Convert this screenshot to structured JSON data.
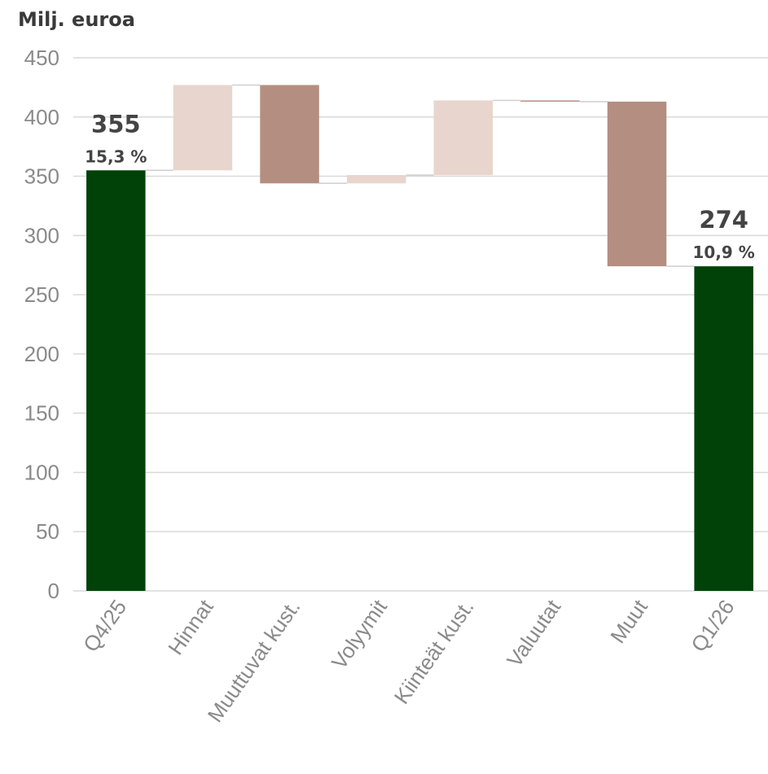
{
  "chart_data": {
    "type": "bar",
    "subtype": "waterfall",
    "unit_label": "Milj. euroa",
    "ylim": [
      0,
      450
    ],
    "yticks": [
      "0",
      "50",
      "100",
      "150",
      "200",
      "250",
      "300",
      "350",
      "400",
      "450"
    ],
    "grid": true,
    "categories": [
      "Q4/25",
      "Hinnat",
      "Muuttuvat kust.",
      "Volyymit",
      "Kiinteät kust.",
      "Valuutat",
      "Muut",
      "Q1/26"
    ],
    "bars": [
      {
        "category": "Q4/25",
        "kind": "total",
        "start": 0,
        "end": 355,
        "value_label": "355",
        "pct_label": "15,3 %"
      },
      {
        "category": "Hinnat",
        "kind": "increase",
        "start": 355,
        "end": 427
      },
      {
        "category": "Muuttuvat kust.",
        "kind": "decrease",
        "start": 427,
        "end": 344
      },
      {
        "category": "Volyymit",
        "kind": "increase",
        "start": 344,
        "end": 351
      },
      {
        "category": "Kiinteät kust.",
        "kind": "increase",
        "start": 351,
        "end": 414
      },
      {
        "category": "Valuutat",
        "kind": "decrease",
        "start": 414,
        "end": 413
      },
      {
        "category": "Muut",
        "kind": "decrease",
        "start": 413,
        "end": 274
      },
      {
        "category": "Q1/26",
        "kind": "total",
        "start": 0,
        "end": 274,
        "value_label": "274",
        "pct_label": "10,9 %"
      }
    ],
    "colors": {
      "total": "#004208",
      "increase": "#e8d5cd",
      "decrease": "#b48e80",
      "grid": "#d9d9d9",
      "connector": "#cfcfcf"
    }
  }
}
